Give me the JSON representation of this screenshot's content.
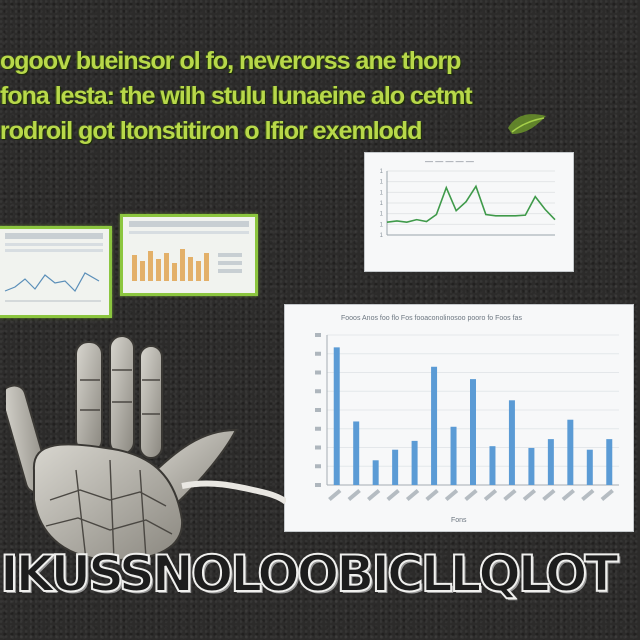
{
  "headline": [
    "ogoov bueinsor ol fo, neverorss ane thorp",
    "fona lesta: the wilh stulu lunaeine alo cetmt",
    "rodroil got ltonstitiron o lfior exemlodd"
  ],
  "bottom_text": "IKUSSNOLOOBICLLQLOT",
  "top_chart": {
    "title": "— — — — —",
    "ytick_labels": [
      "1",
      "1",
      "1",
      "1",
      "1",
      "1",
      "1"
    ],
    "xtick_labels": [
      "",
      "",
      "",
      "",
      "",
      "",
      "",
      "",
      "",
      "",
      ""
    ],
    "xlabel": ""
  },
  "bar_chart": {
    "title": "Fooos  Anos  foo  flo  Fos  fooaconolinosoo  pooro  fo  Foos  fas",
    "ylabel": "",
    "xlabel": "Fons"
  },
  "chart_data": [
    {
      "type": "line",
      "x": [
        1,
        2,
        3,
        4,
        5,
        6,
        7,
        8,
        9,
        10,
        11,
        12,
        13,
        14,
        15,
        16,
        17,
        18
      ],
      "values": [
        20,
        22,
        20,
        24,
        21,
        32,
        74,
        38,
        52,
        76,
        32,
        30,
        30,
        30,
        31,
        60,
        40,
        24
      ],
      "ylim": [
        0,
        100
      ],
      "line_color": "#3f9a4a"
    },
    {
      "type": "bar",
      "values": [
        78,
        36,
        14,
        20,
        25,
        67,
        33,
        60,
        22,
        48,
        21,
        26,
        37,
        20,
        26
      ],
      "ylim": [
        0,
        85
      ],
      "bar_color": "#5b9bd5"
    }
  ]
}
